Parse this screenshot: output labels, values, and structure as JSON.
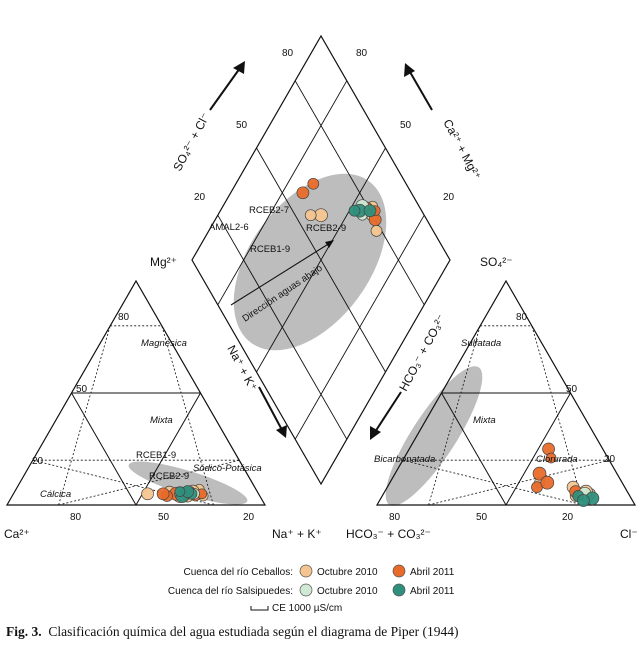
{
  "chart_data": {
    "type": "scatter",
    "title": "Piper diagram",
    "cation_triangle": {
      "corners": {
        "left": "Ca²⁺",
        "top": "Mg²⁺",
        "right": "Na⁺ + K⁺"
      },
      "ticks": [
        "80",
        "50",
        "20"
      ],
      "zones": [
        "Magnésica",
        "Mixta",
        "Sódico-Potásica",
        "Cálcica"
      ]
    },
    "anion_triangle": {
      "corners": {
        "left": "HCO₃⁻ + CO₃²⁻",
        "top": "SO₄²⁻",
        "right": "Cl⁻"
      },
      "ticks": [
        "80",
        "50",
        "20"
      ],
      "zones": [
        "Sulfatada",
        "Mixta",
        "Bicarbonatada",
        "Clorurada"
      ]
    },
    "diamond": {
      "ticks": [
        "80",
        "50",
        "20"
      ],
      "axis_labels": {
        "upper_left": "SO₄²⁻ + Cl⁻",
        "upper_right": "Ca²⁺ + Mg²⁺",
        "lower_left": "Na⁺ + K⁺",
        "lower_right": "HCO₃⁻ + CO₃²⁻"
      },
      "arrow_label": "Dirección aguas abajo"
    },
    "sample_labels": [
      "RCEB2-7",
      "AMAL2-6",
      "RCEB2-9",
      "RCEB1-9"
    ],
    "legend": {
      "group1": "Cuenca del río Ceballos:",
      "group2": "Cuenca del río Salsipuedes:",
      "octubre": "Octubre 2010",
      "abril": "Abril 2011",
      "scale": "CE 1000 µS/cm"
    },
    "series": [
      {
        "name": "Ceballos Octubre 2010",
        "color": "#f6c58f",
        "cation": [
          [
            70,
            5
          ],
          [
            68,
            4
          ],
          [
            74,
            4
          ],
          [
            65,
            4
          ],
          [
            60,
            6
          ],
          [
            52,
            5
          ],
          [
            71,
            7
          ],
          [
            69,
            6
          ]
        ],
        "anion": [
          [
            80,
            5
          ],
          [
            72,
            8
          ],
          [
            58,
            10
          ],
          [
            78,
            6
          ],
          [
            75,
            4
          ]
        ],
        "diamond": [
          [
            78,
            35
          ],
          [
            80,
            40
          ],
          [
            82,
            42
          ],
          [
            60,
            60
          ],
          [
            56,
            64
          ]
        ]
      },
      {
        "name": "Ceballos Abril 2011",
        "color": "#e86a2a",
        "cation": [
          [
            67,
            5
          ],
          [
            71,
            4
          ],
          [
            63,
            5
          ],
          [
            60,
            4
          ],
          [
            58,
            5
          ],
          [
            73,
            5
          ]
        ],
        "anion": [
          [
            54,
            25
          ],
          [
            57,
            21
          ],
          [
            56,
            14
          ],
          [
            58,
            8
          ],
          [
            74,
            6
          ],
          [
            79,
            4
          ],
          [
            61,
            10
          ]
        ],
        "diamond": [
          [
            80,
            38
          ],
          [
            82,
            40
          ],
          [
            79,
            44
          ],
          [
            64,
            70
          ],
          [
            58,
            72
          ]
        ]
      },
      {
        "name": "Salsipuedes Octubre 2010",
        "color": "#cfe9d4",
        "cation": [
          [
            68,
            6
          ],
          [
            65,
            5
          ],
          [
            70,
            5
          ]
        ],
        "anion": [
          [
            80,
            3
          ],
          [
            78,
            5
          ]
        ],
        "diamond": [
          [
            76,
            44
          ],
          [
            78,
            46
          ]
        ]
      },
      {
        "name": "Salsipuedes Abril 2011",
        "color": "#2f8f7c",
        "cation": [
          [
            66,
            4
          ],
          [
            69,
            5
          ],
          [
            67,
            6
          ],
          [
            64,
            6
          ]
        ],
        "anion": [
          [
            82,
            3
          ],
          [
            76,
            4
          ],
          [
            79,
            2
          ]
        ],
        "diamond": [
          [
            76,
            46
          ],
          [
            74,
            48
          ],
          [
            80,
            42
          ]
        ]
      }
    ]
  },
  "caption": {
    "label": "Fig. 3.",
    "text": "Clasificación química del agua estudiada según el diagrama de Piper (1944)"
  }
}
